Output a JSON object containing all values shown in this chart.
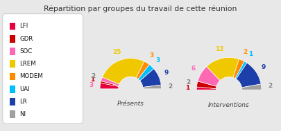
{
  "title": "Répartition par groupes du travail de cette réunion",
  "background_color": "#e8e8e8",
  "legend_items": [
    "LFI",
    "GDR",
    "SOC",
    "LREM",
    "MODEM",
    "UAI",
    "LR",
    "NI"
  ],
  "colors": {
    "LFI": "#e8003d",
    "GDR": "#cc0000",
    "SOC": "#ff69b4",
    "LREM": "#f0c800",
    "MODEM": "#ff8c00",
    "UAI": "#00bfff",
    "LR": "#1c3faa",
    "NI": "#a0a0a0"
  },
  "presents": {
    "label": "Présents",
    "values": [
      3,
      1,
      2,
      25,
      3,
      3,
      9,
      2
    ],
    "groups": [
      "LFI",
      "GDR",
      "SOC",
      "LREM",
      "MODEM",
      "UAI",
      "LR",
      "NI"
    ],
    "label_colors": [
      "#ff69b4",
      "#cc0000",
      "#808080",
      "#f0c800",
      "#ff8c00",
      "#00bfff",
      "#1c3faa",
      "#808080"
    ]
  },
  "interventions": {
    "label": "Interventions",
    "values": [
      1,
      2,
      6,
      12,
      2,
      1,
      9,
      2
    ],
    "groups": [
      "LFI",
      "GDR",
      "SOC",
      "LREM",
      "MODEM",
      "UAI",
      "LR",
      "NI"
    ],
    "label_colors": [
      "#cc0000",
      "#808080",
      "#ff69b4",
      "#f0c800",
      "#ff8c00",
      "#00bfff",
      "#1c3faa",
      "#808080"
    ]
  }
}
